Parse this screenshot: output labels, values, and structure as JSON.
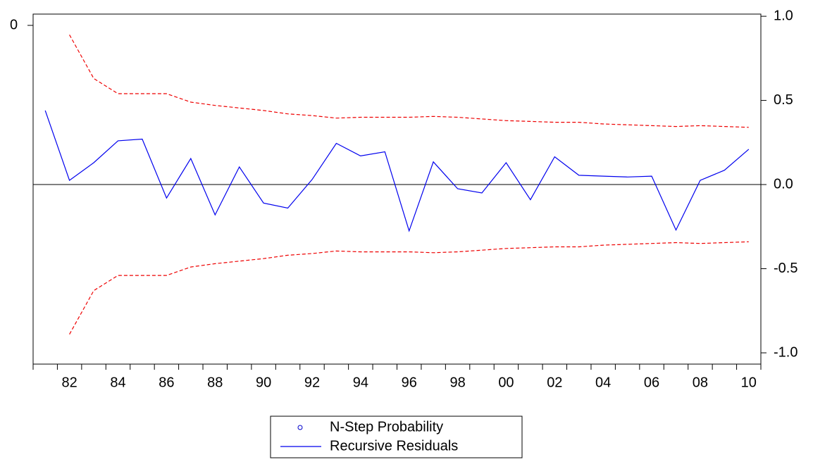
{
  "chart_data": {
    "type": "line",
    "categories": [
      null,
      "82",
      null,
      "84",
      null,
      "86",
      null,
      "88",
      null,
      "90",
      null,
      "92",
      null,
      "94",
      null,
      "96",
      null,
      "98",
      null,
      "00",
      null,
      "02",
      null,
      "04",
      null,
      "06",
      null,
      "08",
      null,
      "10"
    ],
    "series": [
      {
        "name": "N-Step Probability",
        "color": "#0000cc",
        "marker": "circle",
        "axis": "y2",
        "values": [
          null,
          null,
          null,
          null,
          null,
          null,
          null,
          null,
          null,
          null,
          null,
          null,
          null,
          null,
          null,
          null,
          null,
          null,
          null,
          null,
          null,
          null,
          null,
          null,
          null,
          null,
          null,
          null,
          null,
          null
        ]
      },
      {
        "name": "Recursive Residuals",
        "color": "#0000ee",
        "dash": "solid",
        "values": [
          0.44,
          0.025,
          0.13,
          0.26,
          0.27,
          -0.08,
          0.155,
          -0.18,
          0.105,
          -0.11,
          -0.14,
          0.03,
          0.245,
          0.17,
          0.195,
          -0.275,
          0.135,
          -0.025,
          -0.05,
          0.13,
          -0.09,
          0.165,
          0.055,
          0.05,
          0.045,
          0.05,
          -0.27,
          0.025,
          0.085,
          0.21
        ]
      },
      {
        "color": "#ee0000",
        "dash": "dashed",
        "values": [
          null,
          0.89,
          0.63,
          0.54,
          0.54,
          0.54,
          0.49,
          0.47,
          0.455,
          0.44,
          0.42,
          0.41,
          0.395,
          0.4,
          0.4,
          0.4,
          0.405,
          0.4,
          0.39,
          0.38,
          0.375,
          0.37,
          0.37,
          0.36,
          0.355,
          0.35,
          0.345,
          0.35,
          0.345,
          0.34
        ]
      },
      {
        "color": "#ee0000",
        "dash": "dashed",
        "values": [
          null,
          -0.89,
          -0.63,
          -0.54,
          -0.54,
          -0.54,
          -0.49,
          -0.47,
          -0.455,
          -0.44,
          -0.42,
          -0.41,
          -0.395,
          -0.4,
          -0.4,
          -0.4,
          -0.405,
          -0.4,
          -0.39,
          -0.38,
          -0.375,
          -0.37,
          -0.37,
          -0.36,
          -0.355,
          -0.35,
          -0.345,
          -0.35,
          -0.345,
          -0.34
        ]
      }
    ],
    "ylim": [
      -1.067,
      1.013
    ],
    "yticks": [
      {
        "value": 1,
        "label": "1.0"
      },
      0.5,
      {
        "value": 0,
        "label": "0.0"
      },
      -0.5,
      {
        "value": -1,
        "label": "-1.0"
      }
    ],
    "y2lim": [
      0.3,
      -0.01
    ],
    "y2ticks": [
      0
    ],
    "zero_line": true,
    "grid": false
  }
}
